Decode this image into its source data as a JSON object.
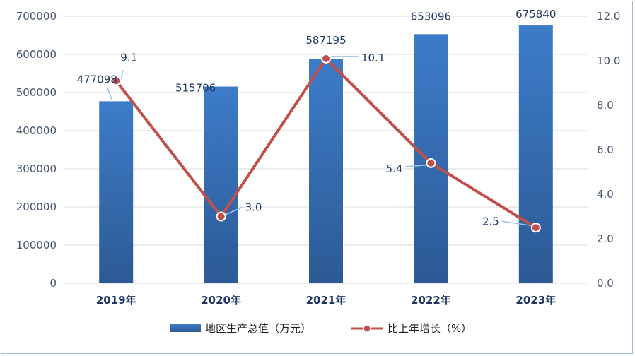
{
  "chart_data": {
    "type": "bar",
    "categories": [
      "2019年",
      "2020年",
      "2021年",
      "2022年",
      "2023年"
    ],
    "series": [
      {
        "name": "地区生产总值（万元）",
        "type": "bar",
        "axis": "left",
        "values": [
          477098,
          515706,
          587195,
          653096,
          675840
        ],
        "labels": [
          "477098",
          "515706",
          "587195",
          "653096",
          "675840"
        ],
        "color": "#3b6fb6"
      },
      {
        "name": "比上年增长（%）",
        "type": "line",
        "axis": "right",
        "values": [
          9.1,
          3.0,
          10.1,
          5.4,
          2.5
        ],
        "labels": [
          "9.1",
          "3.0",
          "10.1",
          "5.4",
          "2.5"
        ],
        "color": "#c0504d"
      }
    ],
    "y_left": {
      "ylim": [
        0,
        700000
      ],
      "ticks": [
        "0",
        "100000",
        "200000",
        "300000",
        "400000",
        "500000",
        "600000",
        "700000"
      ]
    },
    "y_right": {
      "ylim": [
        0,
        12
      ],
      "ticks": [
        "0.0",
        "2.0",
        "4.0",
        "6.0",
        "8.0",
        "10.0",
        "12.0"
      ]
    },
    "grid": true,
    "legend": "bottom"
  }
}
